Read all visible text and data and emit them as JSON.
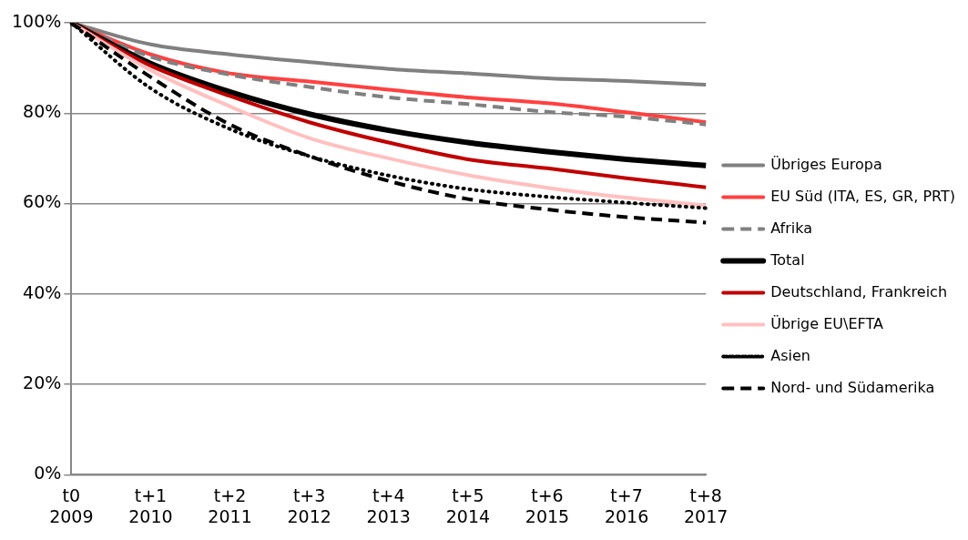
{
  "chart_data": {
    "type": "line",
    "categories": [
      "t0\n2009",
      "t+1\n2010",
      "t+2\n2011",
      "t+3\n2012",
      "t+4\n2013",
      "t+5\n2014",
      "t+6\n2015",
      "t+7\n2016",
      "t+8\n2017"
    ],
    "ylim": [
      0,
      100
    ],
    "yticks": [
      {
        "value": 0,
        "label": "0%"
      },
      {
        "value": 20,
        "label": "20%"
      },
      {
        "value": 40,
        "label": "40%"
      },
      {
        "value": 60,
        "label": "60%"
      },
      {
        "value": 80,
        "label": "80%"
      },
      {
        "value": 100,
        "label": "100%"
      }
    ],
    "grid": "y",
    "legend": "right",
    "marker": "none",
    "series": [
      {
        "name": "Übriges Europa",
        "color": "#808080",
        "line_style": "solid",
        "values": [
          100,
          95.2,
          93,
          91.3,
          89.8,
          88.8,
          87.7,
          87.1,
          86.3
        ]
      },
      {
        "name": "EU Süd (ITA, ES, GR, PRT)",
        "color": "#ff4040",
        "line_style": "solid",
        "values": [
          100,
          93,
          88.8,
          87,
          85.2,
          83.5,
          82.2,
          80.2,
          78
        ]
      },
      {
        "name": "Afrika",
        "color": "#808080",
        "line_style": "dashed",
        "values": [
          100,
          92.5,
          88.5,
          85.8,
          83.5,
          82,
          80.3,
          79.2,
          77.5
        ]
      },
      {
        "name": "Total",
        "color": "#000000",
        "line_style": "solid",
        "values": [
          100,
          91,
          84.7,
          79.8,
          76.2,
          73.5,
          71.5,
          69.8,
          68.4
        ]
      },
      {
        "name": "Deutschland, Frankreich",
        "color": "#c00000",
        "line_style": "solid",
        "values": [
          100,
          90.5,
          83.8,
          78,
          73.5,
          69.8,
          67.8,
          65.6,
          63.6
        ]
      },
      {
        "name": "Übrige EU\\EFTA",
        "color": "#ffc0c0",
        "line_style": "solid",
        "values": [
          100,
          89.5,
          81.5,
          74.5,
          70,
          66.3,
          63.5,
          61.3,
          59.6
        ]
      },
      {
        "name": "Asien",
        "color": "#000000",
        "line_style": "dotted",
        "values": [
          100,
          85.5,
          76.5,
          70.5,
          66.2,
          63.2,
          61.5,
          60.2,
          59
        ]
      },
      {
        "name": "Nord- und Südamerika",
        "color": "#000000",
        "line_style": "dashed",
        "values": [
          100,
          88,
          77.5,
          70.5,
          65,
          61,
          58.7,
          57,
          55.8
        ]
      }
    ]
  }
}
